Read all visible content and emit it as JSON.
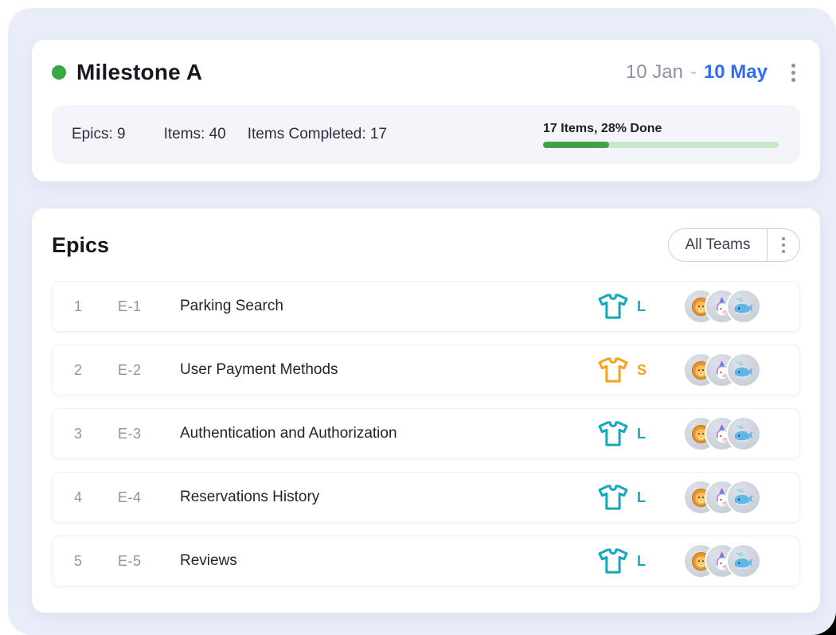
{
  "page": {
    "background_color": "#e9edfa"
  },
  "milestone": {
    "title": "Milestone A",
    "status_dot_color": "#3aa64a",
    "date_range": {
      "start": "10 Jan",
      "separator": "-",
      "end": "10 May",
      "end_color": "#2e6bf6"
    },
    "menu_icon": "kebab-vertical-dots",
    "stats": {
      "epics": "Epics: 9",
      "items": "Items: 40",
      "items_completed": "Items Completed: 17"
    },
    "progress": {
      "label": "17 Items, 28% Done",
      "percent": 28,
      "fill_color": "#43a047",
      "track_color": "#c9e8cb"
    }
  },
  "epics": {
    "title": "Epics",
    "team_filter": {
      "label": "All Teams",
      "menu_icon": "kebab-vertical-dots"
    },
    "size_icon": "t-shirt-outline",
    "rows": [
      {
        "index": "1",
        "code": "E-1",
        "title": "Parking Search",
        "size": "L",
        "size_color": "#13a8bb",
        "avatars": [
          "lion",
          "unicorn",
          "whale"
        ]
      },
      {
        "index": "2",
        "code": "E-2",
        "title": "User Payment Methods",
        "size": "S",
        "size_color": "#f6a31c",
        "avatars": [
          "lion",
          "unicorn",
          "whale"
        ]
      },
      {
        "index": "3",
        "code": "E-3",
        "title": "Authentication and Authorization",
        "size": "L",
        "size_color": "#13a8bb",
        "avatars": [
          "lion",
          "unicorn",
          "whale"
        ]
      },
      {
        "index": "4",
        "code": "E-4",
        "title": "Reservations History",
        "size": "L",
        "size_color": "#13a8bb",
        "avatars": [
          "lion",
          "unicorn",
          "whale"
        ]
      },
      {
        "index": "5",
        "code": "E-5",
        "title": "Reviews",
        "size": "L",
        "size_color": "#13a8bb",
        "avatars": [
          "lion",
          "unicorn",
          "whale"
        ]
      }
    ]
  }
}
